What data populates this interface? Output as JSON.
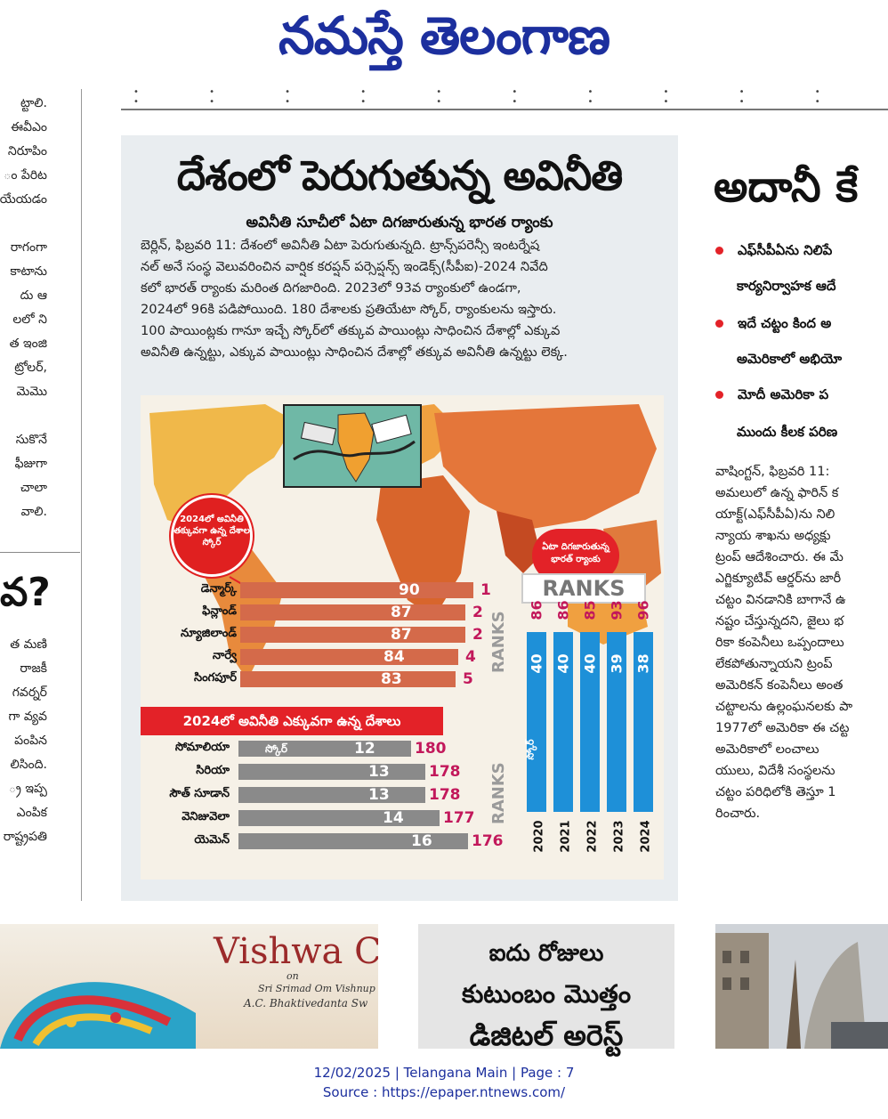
{
  "masthead": {
    "title": "నమస్తే తెలంగాణ"
  },
  "left_column": {
    "fragments_top": [
      "ట్టాలి.",
      "ఈవీఎం",
      "నిరూపిం",
      "ం పేరిట",
      "యేయడం",
      "",
      "రాగంగా",
      "కాటాను",
      "దు ఆ",
      "లలో ని",
      "త ఇంజి",
      "ట్రోలర్,",
      "మెమొ",
      "",
      "సుకొనే",
      "ఫీజుగా",
      "చాలా",
      "వాలి."
    ],
    "big_question": "వ?",
    "fragments_bottom": [
      "త మణి",
      "రాజకీ",
      "గవర్నర్",
      "గా వ్యవ",
      "పంపిన",
      "లిసింది.",
      "్ర ఇప్ప",
      "ఎంపిక",
      "రాష్ట్రపతి"
    ]
  },
  "main_article": {
    "headline": "దేశంలో పెరుగుతున్న అవినీతి",
    "subhead": "అవినీతి సూచీలో ఏటా దిగజారుతున్న భారత ర్యాంకు",
    "body_lines": [
      "బెర్లిన్, ఫిబ్రవరి 11: దేశంలో అవినీతి ఏటా పెరుగుతున్నది. ట్రాన్స్‌పరెన్సీ ఇంటర్నేష",
      "నల్ అనే సంస్థ వెలువరించిన వార్షిక కరప్షన్ పర్సెప్షన్స్ ఇండెక్స్(సీపీఐ)-2024 నివేది",
      "కలో భారత్ ర్యాంకు మరింత దిగజారింది. 2023లో 93వ ర్యాంకులో ఉండగా,",
      "2024లో 96కి పడిపోయింది. 180 దేశాలకు ప్రతియేటా స్కోర్, ర్యాంకులను ఇస్తారు.",
      "100 పాయింట్లకు గానూ ఇచ్చే స్కోర్‌లో తక్కువ పాయింట్లు సాధించిన దేశాల్లో ఎక్కువ",
      "అవినీతి ఉన్నట్టు, ఎక్కువ పాయింట్లు సాధించిన దేశాల్లో తక్కువ అవినీతి ఉన్నట్టు లెక్క."
    ]
  },
  "infographic": {
    "callout": "2024లో అవినీతి తక్కువగా ఉన్న దేశాల స్కోర్",
    "ranks_label": "RANKS",
    "least_corrupt": [
      {
        "country": "డెన్మార్క్",
        "score": 90,
        "rank": 1
      },
      {
        "country": "ఫిన్లాండ్",
        "score": 87,
        "rank": 2
      },
      {
        "country": "న్యూజిలాండ్",
        "score": 87,
        "rank": 2
      },
      {
        "country": "నార్వే",
        "score": 84,
        "rank": 4
      },
      {
        "country": "సింగపూర్",
        "score": 83,
        "rank": 5
      }
    ],
    "most_corrupt_title": "2024లో అవినీతి ఎక్కువగా ఉన్న దేశాలు",
    "score_word": "స్కోర్",
    "most_corrupt": [
      {
        "country": "సోమాలియా",
        "score": 12,
        "rank": 180
      },
      {
        "country": "సిరియా",
        "score": 13,
        "rank": 178
      },
      {
        "country": "సౌత్ సూడాన్",
        "score": 13,
        "rank": 178
      },
      {
        "country": "వెనిజువెలా",
        "score": 14,
        "rank": 177
      },
      {
        "country": "యెమెన్",
        "score": 16,
        "rank": 176
      }
    ],
    "india_badge": "ఏటా దిగజారుతున్న భారత్ ర్యాంకు",
    "india_ranks_header": "RANKS",
    "india_score_word": "స్కోర్",
    "india": [
      {
        "year": "2020",
        "score": 40,
        "rank": 86
      },
      {
        "year": "2021",
        "score": 40,
        "rank": 86
      },
      {
        "year": "2022",
        "score": 40,
        "rank": 85
      },
      {
        "year": "2023",
        "score": 39,
        "rank": 93
      },
      {
        "year": "2024",
        "score": 38,
        "rank": 96
      }
    ]
  },
  "right_article": {
    "headline": "అదానీ కే",
    "bullets": [
      "ఎఫ్‌సీపీఏను నిలిపే",
      "కార్యనిర్వాహక ఆదే",
      "ఇదే చట్టం కింద అ",
      "అమెరికాలో అభియో",
      "మోదీ అమెరికా ప",
      "ముందు కీలక పరిణ"
    ],
    "body_lines": [
      "వాషింగ్టన్, ఫిబ్రవరి 11:",
      "అమలులో ఉన్న ఫారిన్ క",
      "యాక్ట్(ఎఫ్‌సీపీఏ)ను నిలి",
      "న్యాయ శాఖను అధ్యక్షు",
      "ట్రంప్ ఆదేశించారు. ఈ మే",
      "ఎగ్జిక్యూటివ్ ఆర్డర్‌ను జారీ",
      "చట్టం వినడానికి బాగానే ఉ",
      "నష్టం చేస్తున్నదని, జైలు భ",
      "రికా కంపెనీలు ఒప్పందాలు",
      "లేకపోతున్నాయని ట్రంప్",
      "అమెరికన్ కంపెనీలు అంత",
      "చట్టాలను ఉల్లంఘనలకు పా",
      "1977లో అమెరికా ఈ చట్ట",
      "అమెరికాలో లంచాలు",
      "యులు, విదేశీ సంస్థలను",
      "చట్టం పరిధిలోకి తెస్తూ 1",
      "రించారు."
    ]
  },
  "ads": {
    "vishwa_title": "Vishwa C",
    "vishwa_sub1": "on",
    "vishwa_sub2": "Sri Srimad Om Vishnup",
    "vishwa_sub3": "A.C. Bhaktivedanta Sw",
    "mid_line1": "ఐదు రోజులు",
    "mid_line2": "కుటుంబం మొత్తం",
    "mid_line3": "డిజిటల్ అరెస్ట్"
  },
  "footer": {
    "line1": "12/02/2025 | Telangana Main | Page : 7",
    "line2": "Source : https://epaper.ntnews.com/"
  },
  "colors": {
    "brand_blue": "#1c2f9e",
    "accent_red": "#e32228",
    "bar_orange": "#d46a4a",
    "bar_gray": "#8a8a8a",
    "rank_magenta": "#c2185b",
    "india_blue": "#1e90d8"
  }
}
